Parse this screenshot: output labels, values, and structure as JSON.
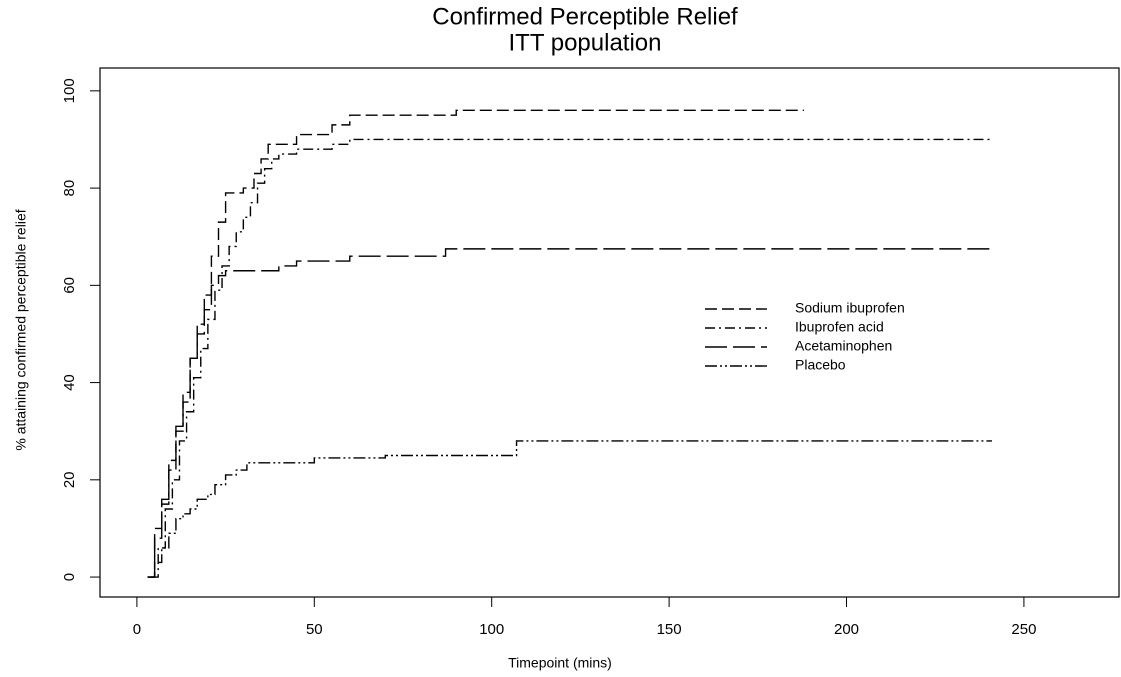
{
  "chart_data": {
    "type": "step",
    "title": "Confirmed Perceptible Relief",
    "subtitle": "ITT population",
    "xlabel": "Timepoint (mins)",
    "ylabel": "% attaining confirmed perceptible relief",
    "xlim": [
      -10.4,
      276.8
    ],
    "ylim": [
      -4.1,
      104.7
    ],
    "xticks": [
      0,
      50,
      100,
      150,
      200,
      250
    ],
    "yticks": [
      0,
      20,
      40,
      60,
      80,
      100
    ],
    "grid": false,
    "legend": "center-right",
    "series": [
      {
        "name": "Sodium ibuprofen",
        "color": "#000000",
        "dash": "dashed",
        "x": [
          3,
          5,
          7,
          9,
          11,
          13,
          15,
          17,
          19,
          21,
          23,
          25,
          30,
          33,
          35,
          37,
          40,
          45,
          50,
          55,
          60,
          70,
          80,
          90,
          188
        ],
        "values": [
          0,
          8,
          15,
          22,
          30,
          36,
          45,
          52,
          58,
          66,
          73,
          79,
          80,
          83,
          86,
          89,
          89,
          91,
          91,
          93,
          95,
          95,
          95,
          96,
          96
        ]
      },
      {
        "name": "Ibuprofen acid",
        "color": "#000000",
        "dash": "dashdot",
        "x": [
          4,
          6,
          8,
          10,
          12,
          14,
          16,
          18,
          20,
          22,
          24,
          26,
          28,
          30,
          32,
          34,
          36,
          38,
          40,
          45,
          50,
          55,
          60,
          241
        ],
        "values": [
          0,
          6,
          14,
          20,
          28,
          34,
          41,
          47,
          53,
          59,
          64,
          68,
          71,
          74,
          77,
          81,
          84,
          86,
          87,
          88,
          88,
          89,
          90,
          90
        ]
      },
      {
        "name": "Acetaminophen",
        "color": "#000000",
        "dash": "longdash",
        "x": [
          3,
          5,
          7,
          9,
          11,
          13,
          15,
          17,
          19,
          21,
          23,
          25,
          30,
          35,
          40,
          45,
          50,
          55,
          60,
          65,
          80,
          87,
          241
        ],
        "values": [
          0,
          10,
          16,
          24,
          31,
          38,
          45,
          50,
          55,
          60,
          62,
          63,
          63,
          63,
          64,
          65,
          65,
          65,
          66,
          66,
          66,
          67.5,
          67.5
        ]
      },
      {
        "name": "Placebo",
        "color": "#000000",
        "dash": "twodash",
        "x": [
          3,
          5,
          7,
          9,
          11,
          13,
          15,
          17,
          20,
          22,
          25,
          28,
          31,
          40,
          50,
          60,
          70,
          80,
          90,
          100,
          107,
          241
        ],
        "values": [
          0,
          3,
          6,
          9,
          12,
          13,
          14,
          16,
          17,
          19,
          21,
          22,
          23.5,
          23.5,
          24.5,
          24.5,
          25,
          25,
          25,
          25,
          28,
          28
        ]
      }
    ]
  }
}
